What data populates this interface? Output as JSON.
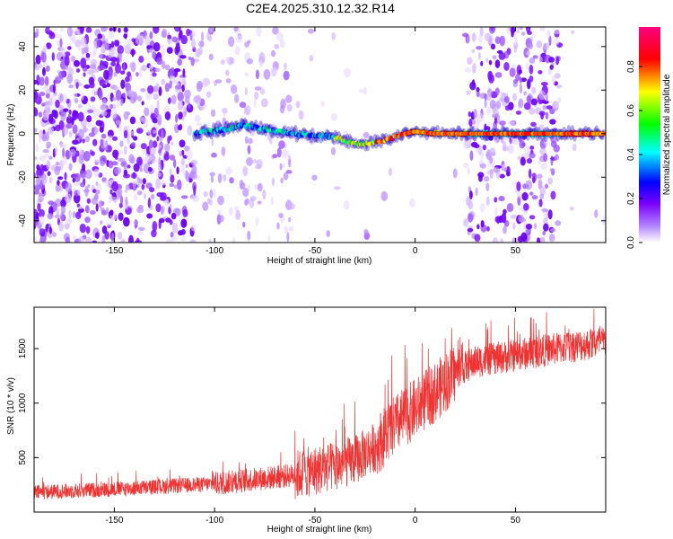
{
  "title": "C2E4.2025.310.12.32.R14",
  "chart_data": [
    {
      "type": "heatmap",
      "xlabel": "Height of straight line (km)",
      "ylabel": "Frequency (Hz)",
      "xlim": [
        -190,
        95
      ],
      "ylim": [
        -50,
        49
      ],
      "xticks": [
        -150,
        -100,
        -50,
        0,
        50
      ],
      "yticks": [
        -40,
        -20,
        0,
        20,
        40
      ],
      "colorbar": {
        "label": "Normalized spectral amplitude",
        "range": [
          0,
          0.98
        ],
        "ticks": [
          0.0,
          0.2,
          0.4,
          0.6,
          0.8
        ],
        "colors": [
          "#ffffff",
          "#7a00ff",
          "#0000ff",
          "#00ffff",
          "#00ff00",
          "#ffff00",
          "#ff0000",
          "#ff0080"
        ]
      },
      "ridge_line": [
        {
          "x": -110,
          "y": 0
        },
        {
          "x": -95,
          "y": 2
        },
        {
          "x": -85,
          "y": 4
        },
        {
          "x": -75,
          "y": 2
        },
        {
          "x": -60,
          "y": 0
        },
        {
          "x": -45,
          "y": -1
        },
        {
          "x": -35,
          "y": -3
        },
        {
          "x": -28,
          "y": -5
        },
        {
          "x": -15,
          "y": -3
        },
        {
          "x": -5,
          "y": 0
        },
        {
          "x": 0,
          "y": 1
        },
        {
          "x": 10,
          "y": 0
        },
        {
          "x": 25,
          "y": 0
        },
        {
          "x": 94,
          "y": 0
        }
      ]
    },
    {
      "type": "line",
      "xlabel": "Height of straight line (km)",
      "ylabel": "SNR (10 * v/v)",
      "xlim": [
        -190,
        95
      ],
      "ylim": [
        0,
        1880
      ],
      "xticks": [
        -150,
        -100,
        -50,
        0,
        50
      ],
      "yticks": [
        500,
        1000,
        1500
      ],
      "series": [
        {
          "color": "#ee3333",
          "trend": [
            {
              "x": -190,
              "y": 180
            },
            {
              "x": -150,
              "y": 210
            },
            {
              "x": -120,
              "y": 240
            },
            {
              "x": -100,
              "y": 260
            },
            {
              "x": -80,
              "y": 300
            },
            {
              "x": -60,
              "y": 340
            },
            {
              "x": -40,
              "y": 420
            },
            {
              "x": -30,
              "y": 480
            },
            {
              "x": -20,
              "y": 600
            },
            {
              "x": -10,
              "y": 800
            },
            {
              "x": 0,
              "y": 950
            },
            {
              "x": 10,
              "y": 1100
            },
            {
              "x": 20,
              "y": 1280
            },
            {
              "x": 30,
              "y": 1380
            },
            {
              "x": 50,
              "y": 1440
            },
            {
              "x": 70,
              "y": 1500
            },
            {
              "x": 94,
              "y": 1560
            }
          ]
        }
      ]
    }
  ]
}
